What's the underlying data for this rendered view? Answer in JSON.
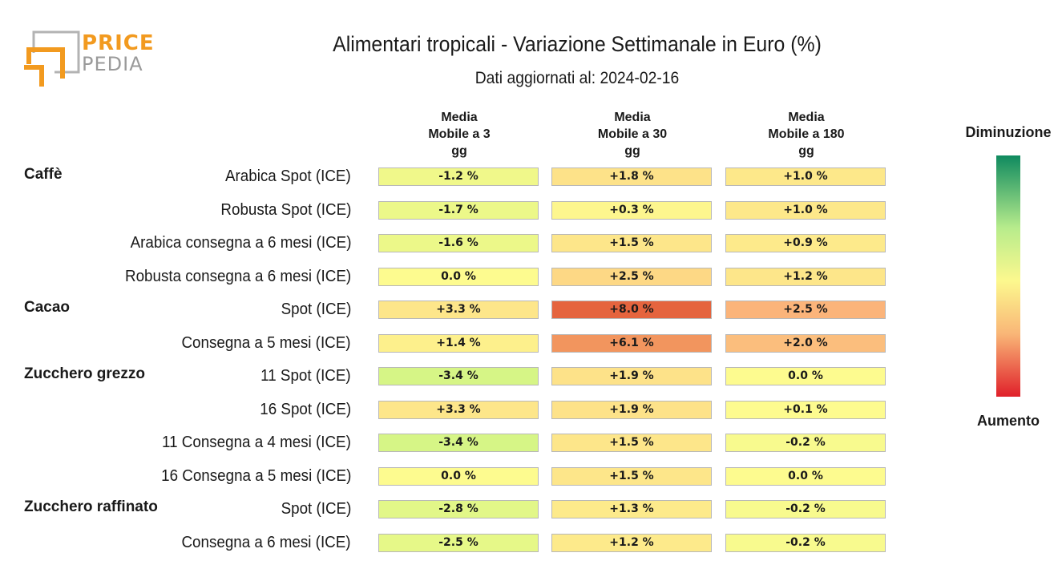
{
  "logo": {
    "line1": "PRICE",
    "line2": "PEDIA"
  },
  "chart_data": {
    "type": "table",
    "title": "Alimentari tropicali - Variazione Settimanale in Euro (%)",
    "subtitle": "Dati aggiornati al: 2024-02-16",
    "columns": [
      [
        "Media",
        "Mobile a 3",
        "gg"
      ],
      [
        "Media",
        "Mobile a 30",
        "gg"
      ],
      [
        "Media",
        "Mobile a 180",
        "gg"
      ]
    ],
    "groups": [
      {
        "name": "Caffè",
        "rows": [
          {
            "label": "Arabica Spot (ICE)",
            "values": [
              "-1.2 %",
              "+1.8 %",
              "+1.0 %"
            ],
            "colors": [
              "#f0f88a",
              "#fde289",
              "#fde88a"
            ]
          },
          {
            "label": "Robusta Spot (ICE)",
            "values": [
              "-1.7 %",
              "+0.3 %",
              "+1.0 %"
            ],
            "colors": [
              "#ecf889",
              "#fdf68e",
              "#fde88a"
            ]
          },
          {
            "label": "Arabica consegna a 6 mesi (ICE)",
            "values": [
              "-1.6 %",
              "+1.5 %",
              "+0.9 %"
            ],
            "colors": [
              "#ecf889",
              "#fde68a",
              "#fdea8b"
            ]
          },
          {
            "label": "Robusta consegna a 6 mesi (ICE)",
            "values": [
              "0.0 %",
              "+2.5 %",
              "+1.2 %"
            ],
            "colors": [
              "#fdfb8f",
              "#fdd885",
              "#fde68a"
            ]
          }
        ]
      },
      {
        "name": "Cacao",
        "rows": [
          {
            "label": "Spot (ICE)",
            "values": [
              "+3.3 %",
              "+8.0 %",
              "+2.5 %"
            ],
            "colors": [
              "#fde68a",
              "#e5643e",
              "#fbb47a"
            ]
          },
          {
            "label": "Consegna a 5 mesi (ICE)",
            "values": [
              "+1.4 %",
              "+6.1 %",
              "+2.0 %"
            ],
            "colors": [
              "#fdf08c",
              "#f2955e",
              "#fbbe7d"
            ]
          }
        ]
      },
      {
        "name": "Zucchero grezzo",
        "rows": [
          {
            "label": "11 Spot (ICE)",
            "values": [
              "-3.4 %",
              "+1.9 %",
              "0.0 %"
            ],
            "colors": [
              "#d6f586",
              "#fde289",
              "#fdfb8f"
            ]
          },
          {
            "label": "16 Spot (ICE)",
            "values": [
              "+3.3 %",
              "+1.9 %",
              "+0.1 %"
            ],
            "colors": [
              "#fde68a",
              "#fde289",
              "#fdfb8f"
            ]
          },
          {
            "label": "11 Consegna a 4 mesi (ICE)",
            "values": [
              "-3.4 %",
              "+1.5 %",
              "-0.2 %"
            ],
            "colors": [
              "#d6f586",
              "#fde68a",
              "#f8fa8e"
            ]
          },
          {
            "label": "16 Consegna a 5 mesi (ICE)",
            "values": [
              "0.0 %",
              "+1.5 %",
              "0.0 %"
            ],
            "colors": [
              "#fdfb8f",
              "#fde68a",
              "#fdfb8f"
            ]
          }
        ]
      },
      {
        "name": "Zucchero raffinato",
        "rows": [
          {
            "label": "Spot (ICE)",
            "values": [
              "-2.8 %",
              "+1.3 %",
              "-0.2 %"
            ],
            "colors": [
              "#e2f788",
              "#fdea8b",
              "#f8fa8e"
            ]
          },
          {
            "label": "Consegna a 6 mesi (ICE)",
            "values": [
              "-2.5 %",
              "+1.2 %",
              "-0.2 %"
            ],
            "colors": [
              "#e6f888",
              "#fdea8b",
              "#f8fa8e"
            ]
          }
        ]
      }
    ],
    "legend": {
      "top_label": "Diminuzione",
      "bottom_label": "Aumento",
      "placement": "right",
      "colors": [
        "#0f8a5f",
        "#b7ec8c",
        "#fcf88e",
        "#f9b677",
        "#e0202a"
      ]
    }
  }
}
